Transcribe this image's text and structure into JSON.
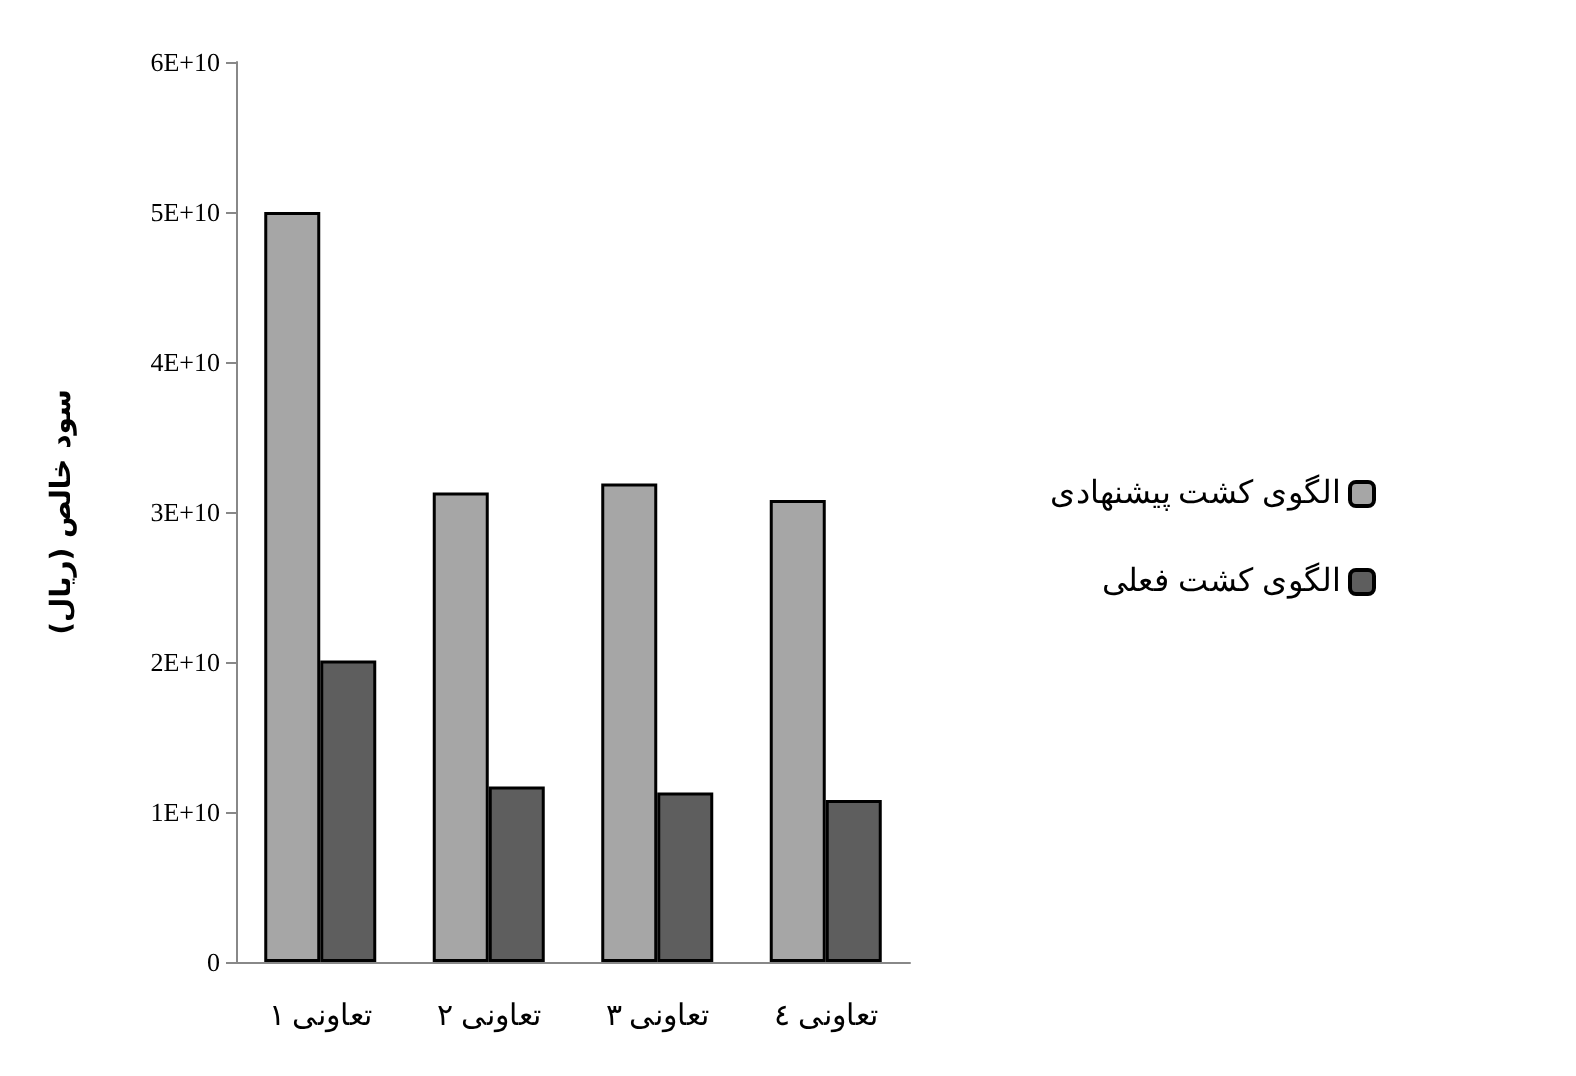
{
  "chart_data": {
    "type": "bar",
    "ylabel": "سود خالص (ریال)",
    "categories": [
      "تعاونی ۱",
      "تعاونی ۲",
      "تعاونی ۳",
      "تعاونی ٤"
    ],
    "series": [
      {
        "name": "الگوی کشت پیشنهادی",
        "color": "#a6a6a6",
        "values": [
          50000000000,
          31300000000,
          31900000000,
          30800000000
        ]
      },
      {
        "name": "الگوی کشت فعلی",
        "color": "#5e5e5e",
        "values": [
          20100000000,
          11700000000,
          11300000000,
          10800000000
        ]
      }
    ],
    "ylim": [
      0,
      60000000000
    ],
    "yticks": [
      {
        "value": 0,
        "label": "0"
      },
      {
        "value": 10000000000,
        "label": "1E+10"
      },
      {
        "value": 20000000000,
        "label": "2E+10"
      },
      {
        "value": 30000000000,
        "label": "3E+10"
      },
      {
        "value": 40000000000,
        "label": "4E+10"
      },
      {
        "value": 50000000000,
        "label": "5E+10"
      },
      {
        "value": 60000000000,
        "label": "6E+10"
      }
    ],
    "grid": false,
    "legend": "right"
  }
}
